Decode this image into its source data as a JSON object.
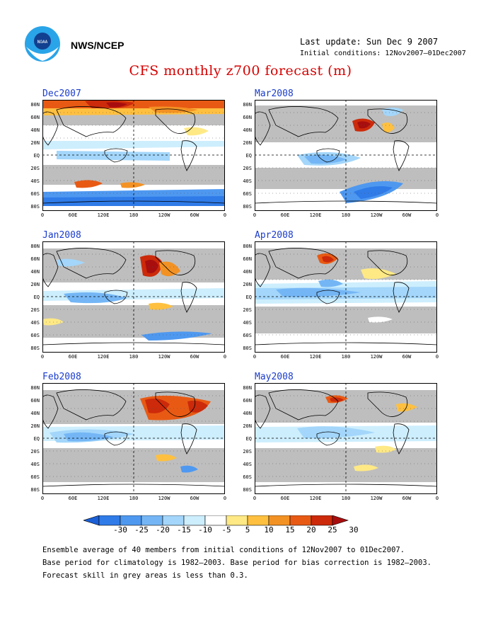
{
  "header": {
    "org": "NWS/NCEP",
    "last_update": "Last update: Sun Dec  9 2007",
    "initial_conditions": "Initial conditions: 12Nov2007–01Dec2007",
    "title": "CFS monthly z700 forecast (m)",
    "logo_text": "NOAA"
  },
  "axes": {
    "lat_labels": [
      "80N",
      "60N",
      "40N",
      "20N",
      "EQ",
      "20S",
      "40S",
      "60S",
      "80S"
    ],
    "lon_labels": [
      "0",
      "60E",
      "120E",
      "180",
      "120W",
      "60W",
      "0"
    ]
  },
  "panels": [
    {
      "title": "Dec2007"
    },
    {
      "title": "Mar2008"
    },
    {
      "title": "Jan2008"
    },
    {
      "title": "Apr2008"
    },
    {
      "title": "Feb2008"
    },
    {
      "title": "May2008"
    }
  ],
  "colorbar": {
    "labels": [
      "-30",
      "-25",
      "-20",
      "-15",
      "-10",
      "-5",
      "5",
      "10",
      "15",
      "20",
      "25",
      "30"
    ],
    "colors": [
      "#1a5fd6",
      "#2f7be8",
      "#4e98f0",
      "#74b6f5",
      "#a3d6fa",
      "#cdeefd",
      "#ffffff",
      "#ffe985",
      "#ffc040",
      "#f39224",
      "#e85a14",
      "#cc2a0a",
      "#a80e0e"
    ]
  },
  "footer": {
    "line1": "Ensemble average of 40 members from initial conditions of 12Nov2007 to 01Dec2007.",
    "line2": "Base period for climatology is 1982–2003. Base period for bias correction is 1982–2003.",
    "line3": "Forecast skill in grey areas is less than 0.3."
  }
}
